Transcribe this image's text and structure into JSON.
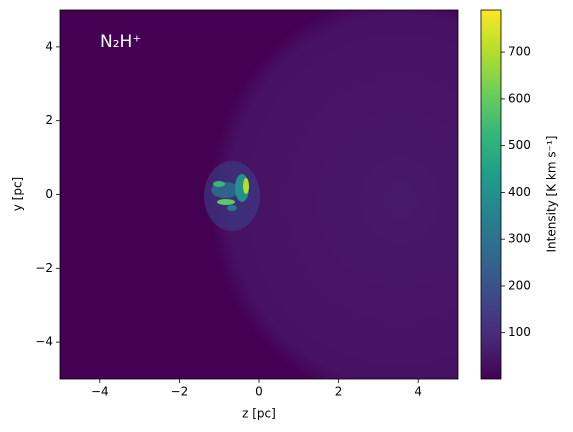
{
  "chart_data": {
    "type": "heatmap",
    "annotation": "N₂H⁺",
    "x_label": "z [pc]",
    "y_label": "y [pc]",
    "xlim": [
      -5,
      5
    ],
    "ylim": [
      -5,
      5
    ],
    "xticks": [
      {
        "value": -4,
        "label": "−4"
      },
      {
        "value": -2,
        "label": "−2"
      },
      0,
      2,
      4
    ],
    "yticks": [
      {
        "value": -4,
        "label": "−4"
      },
      {
        "value": -2,
        "label": "−2"
      },
      0,
      2,
      4
    ],
    "colormap": "viridis",
    "colorbar": {
      "label": "Intensity [K km s⁻¹]",
      "clim": [
        1,
        790
      ],
      "ticks": [
        100,
        200,
        300,
        400,
        500,
        600,
        700
      ]
    }
  }
}
